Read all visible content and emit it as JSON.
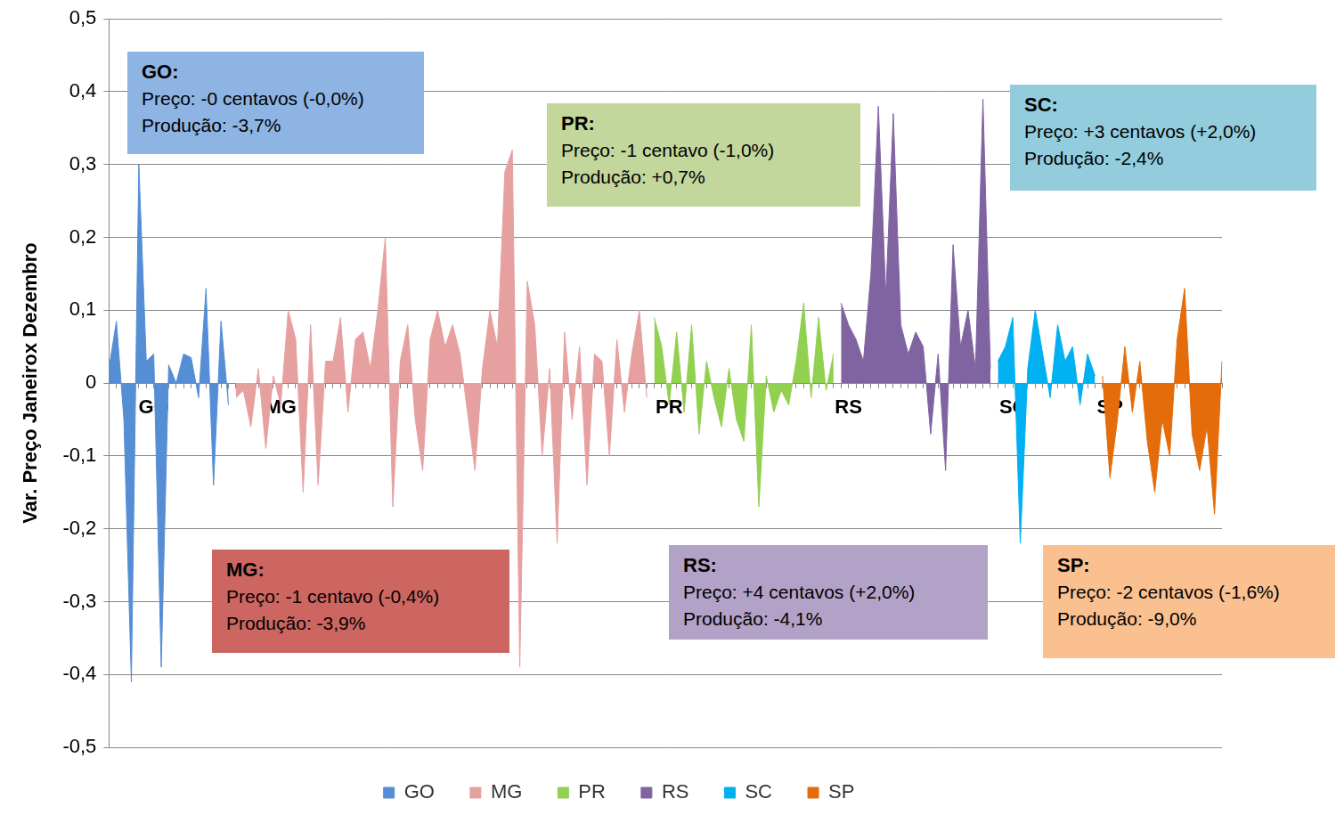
{
  "chart_data": {
    "type": "area",
    "y_label": "Var. Preço Janeirox Dezembro",
    "categories": [
      null,
      null,
      null,
      null,
      null,
      null,
      "GO",
      null,
      null,
      null,
      null,
      null,
      null,
      null,
      null,
      null,
      null,
      null,
      null,
      null,
      null,
      null,
      null,
      "MG",
      null,
      null,
      null,
      null,
      null,
      null,
      null,
      null,
      null,
      null,
      null,
      null,
      null,
      null,
      null,
      null,
      null,
      null,
      null,
      null,
      null,
      null,
      null,
      null,
      null,
      null,
      null,
      null,
      null,
      null,
      null,
      null,
      null,
      null,
      null,
      null,
      null,
      null,
      null,
      null,
      null,
      null,
      null,
      null,
      null,
      null,
      null,
      null,
      null,
      null,
      null,
      "PR",
      null,
      null,
      null,
      null,
      null,
      null,
      null,
      null,
      null,
      null,
      null,
      null,
      null,
      null,
      null,
      null,
      null,
      null,
      null,
      null,
      null,
      null,
      null,
      "RS",
      null,
      null,
      null,
      null,
      null,
      null,
      null,
      null,
      null,
      null,
      null,
      null,
      null,
      null,
      null,
      null,
      null,
      null,
      null,
      null,
      null,
      "SC",
      null,
      null,
      null,
      null,
      null,
      null,
      null,
      null,
      null,
      null,
      null,
      null,
      "SP",
      null,
      null,
      null,
      null,
      null,
      null,
      null,
      null,
      null,
      null,
      null,
      null,
      null,
      null,
      null
    ],
    "series": [
      {
        "name": "GO",
        "color": "#558ed5",
        "values": [
          0.02,
          0.085,
          -0.05,
          -0.41,
          0.3,
          0.03,
          0.04,
          -0.39,
          0.025,
          0,
          0.04,
          0.035,
          -0.02,
          0.13,
          -0.14,
          0.085,
          -0.03,
          null,
          null,
          null,
          null,
          null,
          null,
          null,
          null,
          null,
          null,
          null,
          null,
          null,
          null,
          null,
          null,
          null,
          null,
          null,
          null,
          null,
          null,
          null,
          null,
          null,
          null,
          null,
          null,
          null,
          null,
          null,
          null,
          null,
          null,
          null,
          null,
          null,
          null,
          null,
          null,
          null,
          null,
          null,
          null,
          null,
          null,
          null,
          null,
          null,
          null,
          null,
          null,
          null,
          null,
          null,
          null,
          null,
          null,
          null,
          null,
          null,
          null,
          null,
          null,
          null,
          null,
          null,
          null,
          null,
          null,
          null,
          null,
          null,
          null,
          null,
          null,
          null,
          null,
          null,
          null,
          null,
          null,
          null,
          null,
          null,
          null,
          null,
          null,
          null,
          null,
          null,
          null,
          null,
          null,
          null,
          null,
          null,
          null,
          null,
          null,
          null,
          null,
          null,
          null,
          null,
          null,
          null,
          null,
          null,
          null,
          null,
          null,
          null,
          null,
          null,
          null,
          null,
          null,
          null,
          null,
          null,
          null,
          null,
          null,
          null,
          null,
          null,
          null,
          null,
          null,
          null,
          null,
          null
        ]
      },
      {
        "name": "MG",
        "color": "#e6a0a0",
        "values": [
          null,
          null,
          null,
          null,
          null,
          null,
          null,
          null,
          null,
          null,
          null,
          null,
          null,
          null,
          null,
          null,
          null,
          -0.02,
          -0.01,
          -0.06,
          0.02,
          -0.09,
          0.01,
          -0.03,
          0.1,
          0.06,
          -0.15,
          0.08,
          -0.14,
          0.03,
          0.03,
          0.09,
          -0.04,
          0.06,
          0.07,
          0.02,
          0.1,
          0.2,
          -0.17,
          0.03,
          0.08,
          -0.05,
          -0.12,
          0.06,
          0.1,
          0.05,
          0.08,
          0.04,
          -0.04,
          -0.12,
          0.02,
          0.1,
          0.05,
          0.29,
          0.32,
          -0.39,
          0.14,
          0.08,
          -0.1,
          0.02,
          -0.22,
          0.07,
          -0.05,
          0.05,
          -0.14,
          0.04,
          0.03,
          -0.1,
          0.06,
          -0.04,
          0.04,
          0.1,
          -0.02,
          null,
          null,
          null,
          null,
          null,
          null,
          null,
          null,
          null,
          null,
          null,
          null,
          null,
          null,
          null,
          null,
          null,
          null,
          null,
          null,
          null,
          null,
          null,
          null,
          null,
          null,
          null,
          null,
          null,
          null,
          null,
          null,
          null,
          null,
          null,
          null,
          null,
          null,
          null,
          null,
          null,
          null,
          null,
          null,
          null,
          null,
          null,
          null,
          null,
          null,
          null,
          null,
          null,
          null,
          null,
          null,
          null,
          null,
          null,
          null,
          null,
          null,
          null,
          null,
          null,
          null,
          null,
          null,
          null,
          null,
          null,
          null,
          null,
          null,
          null,
          null,
          null
        ]
      },
      {
        "name": "PR",
        "color": "#92d050",
        "values": [
          null,
          null,
          null,
          null,
          null,
          null,
          null,
          null,
          null,
          null,
          null,
          null,
          null,
          null,
          null,
          null,
          null,
          null,
          null,
          null,
          null,
          null,
          null,
          null,
          null,
          null,
          null,
          null,
          null,
          null,
          null,
          null,
          null,
          null,
          null,
          null,
          null,
          null,
          null,
          null,
          null,
          null,
          null,
          null,
          null,
          null,
          null,
          null,
          null,
          null,
          null,
          null,
          null,
          null,
          null,
          null,
          null,
          null,
          null,
          null,
          null,
          null,
          null,
          null,
          null,
          null,
          null,
          null,
          null,
          null,
          null,
          null,
          null,
          0.09,
          0.05,
          -0.03,
          0.07,
          -0.04,
          0.08,
          -0.07,
          0.03,
          -0.02,
          -0.06,
          0.02,
          -0.05,
          -0.08,
          0.08,
          -0.17,
          0.01,
          -0.04,
          -0.01,
          -0.03,
          0.03,
          0.11,
          -0.02,
          0.09,
          -0.01,
          0.04,
          null,
          null,
          null,
          null,
          null,
          null,
          null,
          null,
          null,
          null,
          null,
          null,
          null,
          null,
          null,
          null,
          null,
          null,
          null,
          null,
          null,
          null,
          null,
          null,
          null,
          null,
          null,
          null,
          null,
          null,
          null,
          null,
          null,
          null,
          null,
          null,
          null,
          null,
          null,
          null,
          null,
          null,
          null,
          null,
          null,
          null,
          null,
          null,
          null,
          null,
          null,
          null
        ]
      },
      {
        "name": "RS",
        "color": "#8064a2",
        "values": [
          null,
          null,
          null,
          null,
          null,
          null,
          null,
          null,
          null,
          null,
          null,
          null,
          null,
          null,
          null,
          null,
          null,
          null,
          null,
          null,
          null,
          null,
          null,
          null,
          null,
          null,
          null,
          null,
          null,
          null,
          null,
          null,
          null,
          null,
          null,
          null,
          null,
          null,
          null,
          null,
          null,
          null,
          null,
          null,
          null,
          null,
          null,
          null,
          null,
          null,
          null,
          null,
          null,
          null,
          null,
          null,
          null,
          null,
          null,
          null,
          null,
          null,
          null,
          null,
          null,
          null,
          null,
          null,
          null,
          null,
          null,
          null,
          null,
          null,
          null,
          null,
          null,
          null,
          null,
          null,
          null,
          null,
          null,
          null,
          null,
          null,
          null,
          null,
          null,
          null,
          null,
          null,
          null,
          null,
          null,
          null,
          null,
          null,
          0.11,
          0.08,
          0.06,
          0.03,
          0.15,
          0.38,
          0.12,
          0.37,
          0.08,
          0.04,
          0.07,
          0.05,
          -0.07,
          0.04,
          -0.12,
          0.19,
          0.05,
          0.1,
          0.02,
          0.39,
          0.02,
          null,
          null,
          null,
          null,
          null,
          null,
          null,
          null,
          null,
          null,
          null,
          null,
          null,
          null,
          null,
          null,
          null,
          null,
          null,
          null,
          null,
          null,
          null,
          null,
          null,
          null,
          null,
          null,
          null,
          null,
          null
        ]
      },
      {
        "name": "SC",
        "color": "#00b0f0",
        "values": [
          null,
          null,
          null,
          null,
          null,
          null,
          null,
          null,
          null,
          null,
          null,
          null,
          null,
          null,
          null,
          null,
          null,
          null,
          null,
          null,
          null,
          null,
          null,
          null,
          null,
          null,
          null,
          null,
          null,
          null,
          null,
          null,
          null,
          null,
          null,
          null,
          null,
          null,
          null,
          null,
          null,
          null,
          null,
          null,
          null,
          null,
          null,
          null,
          null,
          null,
          null,
          null,
          null,
          null,
          null,
          null,
          null,
          null,
          null,
          null,
          null,
          null,
          null,
          null,
          null,
          null,
          null,
          null,
          null,
          null,
          null,
          null,
          null,
          null,
          null,
          null,
          null,
          null,
          null,
          null,
          null,
          null,
          null,
          null,
          null,
          null,
          null,
          null,
          null,
          null,
          null,
          null,
          null,
          null,
          null,
          null,
          null,
          null,
          null,
          null,
          null,
          null,
          null,
          null,
          null,
          null,
          null,
          null,
          null,
          null,
          null,
          null,
          null,
          null,
          null,
          null,
          null,
          null,
          null,
          0.03,
          0.05,
          0.09,
          -0.22,
          0.02,
          0.1,
          0.04,
          -0.02,
          0.08,
          0.03,
          0.05,
          -0.03,
          0.04,
          0.01,
          null,
          null,
          null,
          null,
          null,
          null,
          null,
          null,
          null,
          null,
          null,
          null,
          null,
          null,
          null,
          null,
          null
        ]
      },
      {
        "name": "SP",
        "color": "#e46c0a",
        "values": [
          null,
          null,
          null,
          null,
          null,
          null,
          null,
          null,
          null,
          null,
          null,
          null,
          null,
          null,
          null,
          null,
          null,
          null,
          null,
          null,
          null,
          null,
          null,
          null,
          null,
          null,
          null,
          null,
          null,
          null,
          null,
          null,
          null,
          null,
          null,
          null,
          null,
          null,
          null,
          null,
          null,
          null,
          null,
          null,
          null,
          null,
          null,
          null,
          null,
          null,
          null,
          null,
          null,
          null,
          null,
          null,
          null,
          null,
          null,
          null,
          null,
          null,
          null,
          null,
          null,
          null,
          null,
          null,
          null,
          null,
          null,
          null,
          null,
          null,
          null,
          null,
          null,
          null,
          null,
          null,
          null,
          null,
          null,
          null,
          null,
          null,
          null,
          null,
          null,
          null,
          null,
          null,
          null,
          null,
          null,
          null,
          null,
          null,
          null,
          null,
          null,
          null,
          null,
          null,
          null,
          null,
          null,
          null,
          null,
          null,
          null,
          null,
          null,
          null,
          null,
          null,
          null,
          null,
          null,
          null,
          null,
          null,
          null,
          null,
          null,
          null,
          null,
          null,
          null,
          null,
          null,
          null,
          null,
          0.01,
          -0.13,
          -0.05,
          0.05,
          -0.04,
          0.03,
          -0.08,
          -0.15,
          -0.05,
          -0.1,
          0.06,
          0.13,
          -0.07,
          -0.12,
          -0.06,
          -0.18,
          0.03
        ]
      }
    ],
    "ylim": [
      -0.5,
      0.5
    ],
    "yticks": [
      {
        "value": -0.5,
        "label": "-0,5"
      },
      {
        "value": -0.4,
        "label": "-0,4"
      },
      {
        "value": -0.3,
        "label": "-0,3"
      },
      {
        "value": -0.2,
        "label": "-0,2"
      },
      {
        "value": -0.1,
        "label": "-0,1"
      },
      0,
      {
        "value": 0.1,
        "label": "0,1"
      },
      {
        "value": 0.2,
        "label": "0,2"
      },
      {
        "value": 0.3,
        "label": "0,3"
      },
      {
        "value": 0.4,
        "label": "0,4"
      },
      {
        "value": 0.5,
        "label": "0,5"
      }
    ],
    "grid": true,
    "legend": "bottom",
    "annotations": [
      {
        "title": "GO:",
        "lines": [
          "Preço: -0 centavos (-0,0%)",
          "Produção: -3,7%"
        ]
      },
      {
        "title": "MG:",
        "lines": [
          "Preço: -1 centavo (-0,4%)",
          "Produção: -3,9%"
        ]
      },
      {
        "title": "PR:",
        "lines": [
          "Preço: -1 centavo (-1,0%)",
          "Produção: +0,7%"
        ]
      },
      {
        "title": "RS:",
        "lines": [
          "Preço: +4 centavos (+2,0%)",
          "Produção: -4,1%"
        ]
      },
      {
        "title": "SC:",
        "lines": [
          "Preço: +3 centavos (+2,0%)",
          "Produção: -2,4%"
        ]
      },
      {
        "title": "SP:",
        "lines": [
          "Preço: -2 centavos (-1,6%)",
          "Produção: -9,0%"
        ]
      }
    ]
  }
}
